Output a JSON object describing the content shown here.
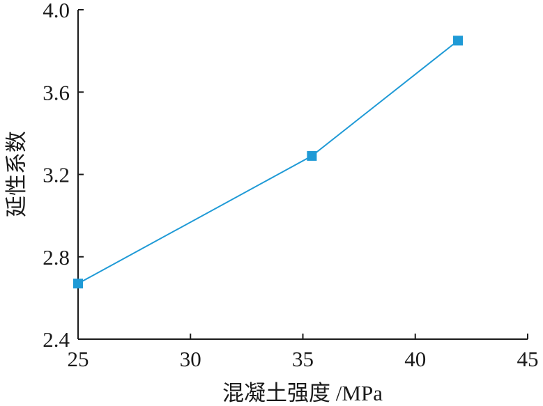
{
  "chart_data": {
    "type": "line",
    "title": "",
    "xlabel": "混凝土强度 /MPa",
    "ylabel": "延性系数",
    "xlim": [
      25,
      45
    ],
    "ylim": [
      2.4,
      4.0
    ],
    "x_ticks": [
      "25",
      "30",
      "35",
      "40",
      "45"
    ],
    "y_ticks": [
      "2.4",
      "2.8",
      "3.2",
      "3.6",
      "4.0"
    ],
    "grid": false,
    "legend": "none",
    "series": [
      {
        "color": "#1f9ad6",
        "marker": "square",
        "x": [
          25.0,
          35.4,
          41.9
        ],
        "y": [
          2.67,
          3.29,
          3.85
        ]
      }
    ]
  }
}
